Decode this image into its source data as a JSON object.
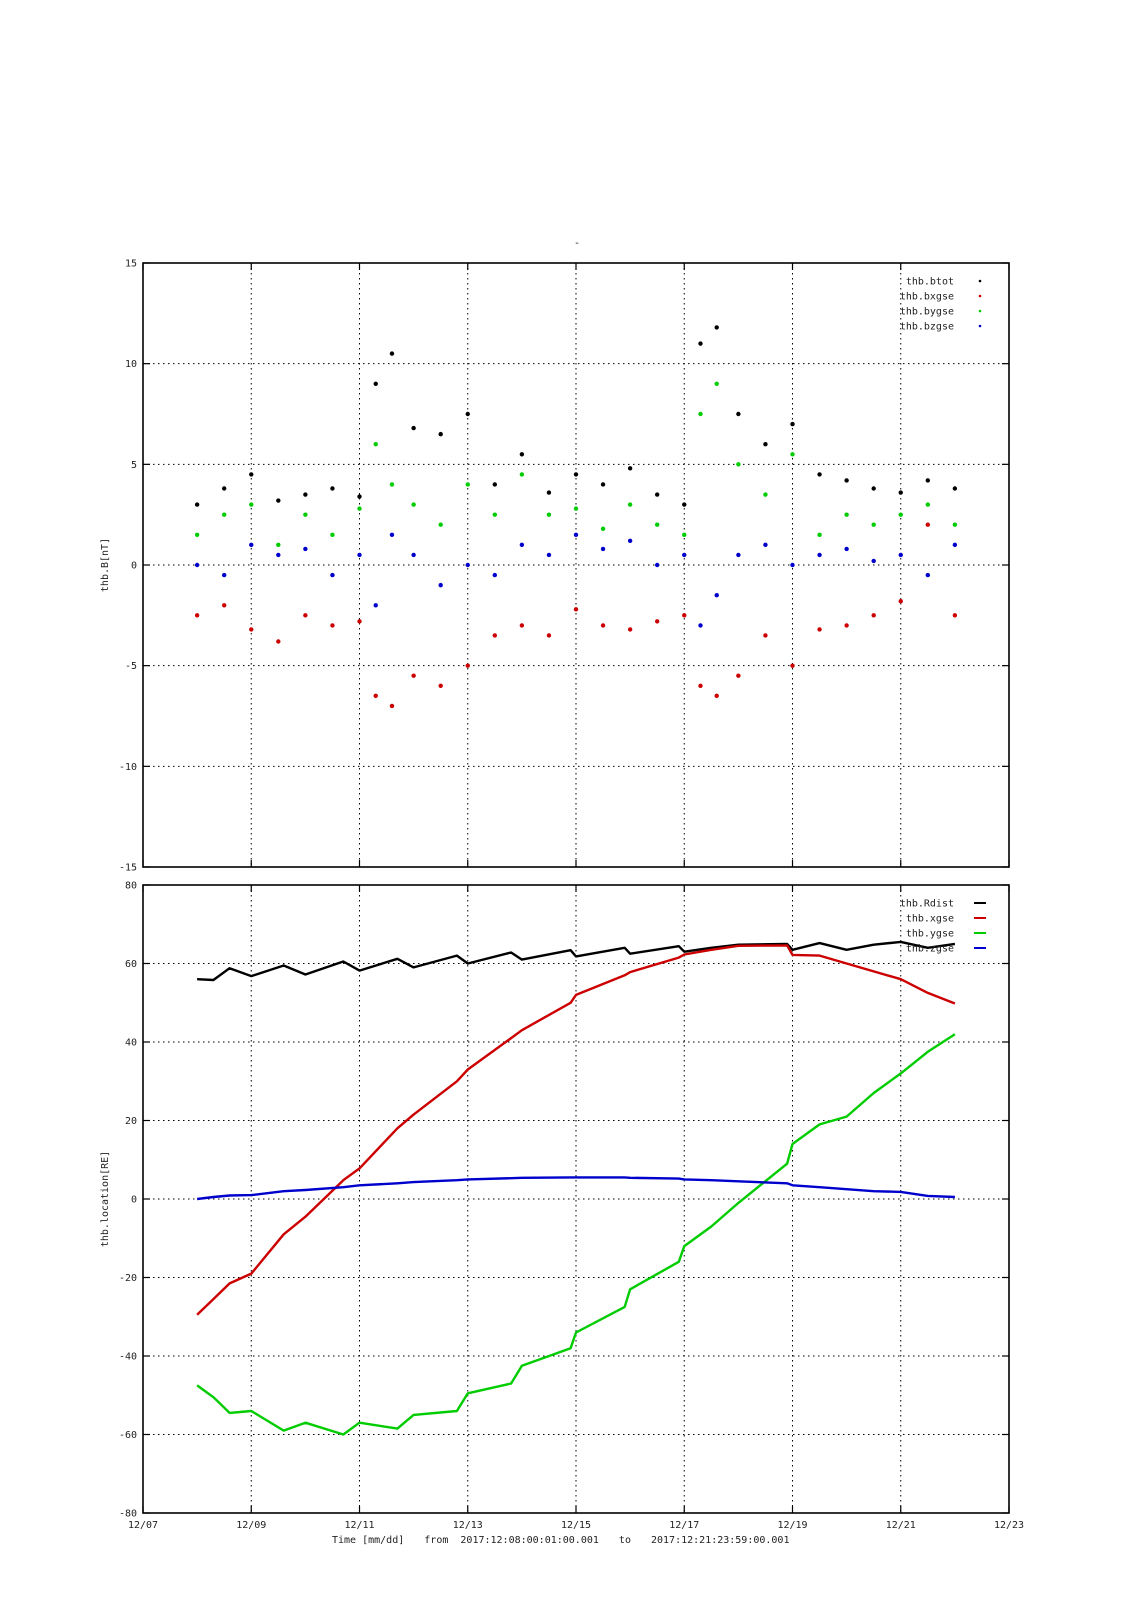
{
  "figure_title": "-",
  "footer": {
    "time_label": "Time [mm/dd]",
    "from_label": "from",
    "start": "2017:12:08:00:01:00.001",
    "to_label": "to",
    "end": "2017:12:21:23:59:00.001"
  },
  "x_tick_labels": [
    "12/07",
    "12/09",
    "12/11",
    "12/13",
    "12/15",
    "12/17",
    "12/19",
    "12/21",
    "12/23"
  ],
  "colors": {
    "black": "#000000",
    "red": "#cc0000",
    "green": "#00cc00",
    "blue": "#0000cc"
  },
  "chart_data": [
    {
      "type": "scatter",
      "title": "",
      "xlabel": "",
      "ylabel": "thb.B[nT]",
      "xlim": [
        "12/07",
        "12/23"
      ],
      "ylim": [
        -15,
        15
      ],
      "yticks": [
        15,
        10,
        5,
        0,
        -5,
        -10,
        -15
      ],
      "grid": true,
      "legend_position": "top-right",
      "series": [
        {
          "name": "thb.btot",
          "color": "#000000",
          "x": [
            "12/08",
            "12/08.5",
            "12/09",
            "12/09.5",
            "12/10",
            "12/10.5",
            "12/11",
            "12/11.3",
            "12/11.6",
            "12/12",
            "12/12.5",
            "12/13",
            "12/13.5",
            "12/14",
            "12/14.5",
            "12/15",
            "12/15.5",
            "12/16",
            "12/16.5",
            "12/17",
            "12/17.3",
            "12/17.6",
            "12/18",
            "12/18.5",
            "12/19",
            "12/19.5",
            "12/20",
            "12/20.5",
            "12/21",
            "12/21.5",
            "12/22"
          ],
          "values": [
            3.0,
            3.8,
            4.5,
            3.2,
            3.5,
            3.8,
            3.4,
            9.0,
            10.5,
            6.8,
            6.5,
            7.5,
            4.0,
            5.5,
            3.6,
            4.5,
            4.0,
            4.8,
            3.5,
            3.0,
            11.0,
            11.8,
            7.5,
            6.0,
            7.0,
            4.5,
            4.2,
            3.8,
            3.6,
            4.2,
            3.8
          ]
        },
        {
          "name": "thb.bxgse",
          "color": "#cc0000",
          "x": [
            "12/08",
            "12/08.5",
            "12/09",
            "12/09.5",
            "12/10",
            "12/10.5",
            "12/11",
            "12/11.3",
            "12/11.6",
            "12/12",
            "12/12.5",
            "12/13",
            "12/13.5",
            "12/14",
            "12/14.5",
            "12/15",
            "12/15.5",
            "12/16",
            "12/16.5",
            "12/17",
            "12/17.3",
            "12/17.6",
            "12/18",
            "12/18.5",
            "12/19",
            "12/19.5",
            "12/20",
            "12/20.5",
            "12/21",
            "12/21.5",
            "12/22"
          ],
          "values": [
            -2.5,
            -2.0,
            -3.2,
            -3.8,
            -2.5,
            -3.0,
            -2.8,
            -6.5,
            -7.0,
            -5.5,
            -6.0,
            -5.0,
            -3.5,
            -3.0,
            -3.5,
            -2.2,
            -3.0,
            -3.2,
            -2.8,
            -2.5,
            -6.0,
            -6.5,
            -5.5,
            -3.5,
            -5.0,
            -3.2,
            -3.0,
            -2.5,
            -1.8,
            2.0,
            -2.5
          ]
        },
        {
          "name": "thb.bygse",
          "color": "#00cc00",
          "x": [
            "12/08",
            "12/08.5",
            "12/09",
            "12/09.5",
            "12/10",
            "12/10.5",
            "12/11",
            "12/11.3",
            "12/11.6",
            "12/12",
            "12/12.5",
            "12/13",
            "12/13.5",
            "12/14",
            "12/14.5",
            "12/15",
            "12/15.5",
            "12/16",
            "12/16.5",
            "12/17",
            "12/17.3",
            "12/17.6",
            "12/18",
            "12/18.5",
            "12/19",
            "12/19.5",
            "12/20",
            "12/20.5",
            "12/21",
            "12/21.5",
            "12/22"
          ],
          "values": [
            1.5,
            2.5,
            3.0,
            1.0,
            2.5,
            1.5,
            2.8,
            6.0,
            4.0,
            3.0,
            2.0,
            4.0,
            2.5,
            4.5,
            2.5,
            2.8,
            1.8,
            3.0,
            2.0,
            1.5,
            7.5,
            9.0,
            5.0,
            3.5,
            5.5,
            1.5,
            2.5,
            2.0,
            2.5,
            3.0,
            2.0
          ]
        },
        {
          "name": "thb.bzgse",
          "color": "#0000cc",
          "x": [
            "12/08",
            "12/08.5",
            "12/09",
            "12/09.5",
            "12/10",
            "12/10.5",
            "12/11",
            "12/11.3",
            "12/11.6",
            "12/12",
            "12/12.5",
            "12/13",
            "12/13.5",
            "12/14",
            "12/14.5",
            "12/15",
            "12/15.5",
            "12/16",
            "12/16.5",
            "12/17",
            "12/17.3",
            "12/17.6",
            "12/18",
            "12/18.5",
            "12/19",
            "12/19.5",
            "12/20",
            "12/20.5",
            "12/21",
            "12/21.5",
            "12/22"
          ],
          "values": [
            0.0,
            -0.5,
            1.0,
            0.5,
            0.8,
            -0.5,
            0.5,
            -2.0,
            1.5,
            0.5,
            -1.0,
            0.0,
            -0.5,
            1.0,
            0.5,
            1.5,
            0.8,
            1.2,
            0.0,
            0.5,
            -3.0,
            -1.5,
            0.5,
            1.0,
            0.0,
            0.5,
            0.8,
            0.2,
            0.5,
            -0.5,
            1.0
          ]
        }
      ]
    },
    {
      "type": "line",
      "title": "",
      "xlabel": "Time [mm/dd]",
      "ylabel": "thb.location[RE]",
      "xlim": [
        "12/07",
        "12/23"
      ],
      "ylim": [
        -80,
        80
      ],
      "yticks": [
        80,
        60,
        40,
        20,
        0,
        -20,
        -40,
        -60,
        -80
      ],
      "grid": true,
      "legend_position": "top-right",
      "series": [
        {
          "name": "thb.Rdist",
          "color": "#000000",
          "x": [
            "12/08",
            "12/08.3",
            "12/08.6",
            "12/09",
            "12/09.6",
            "12/10",
            "12/10.7",
            "12/11",
            "12/11.7",
            "12/12",
            "12/12.8",
            "12/13",
            "12/13.8",
            "12/14",
            "12/14.9",
            "12/15",
            "12/15.9",
            "12/16",
            "12/16.9",
            "12/17",
            "12/17.5",
            "12/18",
            "12/18.9",
            "12/19",
            "12/19.5",
            "12/20",
            "12/20.5",
            "12/21",
            "12/21.5",
            "12/22"
          ],
          "values": [
            56,
            55.8,
            58.8,
            56.8,
            59.5,
            57.2,
            60.5,
            58.2,
            61.2,
            59.0,
            62.0,
            60.0,
            62.8,
            61.0,
            63.4,
            61.8,
            64.0,
            62.5,
            64.4,
            63.0,
            64.0,
            64.8,
            65.0,
            63.5,
            65.2,
            63.5,
            64.8,
            65.5,
            64.0,
            65.0
          ]
        },
        {
          "name": "thb.xgse",
          "color": "#cc0000",
          "x": [
            "12/08",
            "12/08.3",
            "12/08.6",
            "12/09",
            "12/09.6",
            "12/10",
            "12/10.7",
            "12/11",
            "12/11.7",
            "12/12",
            "12/12.8",
            "12/13",
            "12/13.8",
            "12/14",
            "12/14.9",
            "12/15",
            "12/15.9",
            "12/16",
            "12/16.9",
            "12/17",
            "12/17.5",
            "12/18",
            "12/18.9",
            "12/19",
            "12/19.5",
            "12/20",
            "12/20.5",
            "12/21",
            "12/21.5",
            "12/22"
          ],
          "values": [
            -29.5,
            -25.5,
            -21.5,
            -19.0,
            -9.0,
            -4.5,
            4.8,
            7.8,
            18.0,
            21.5,
            30.0,
            33.0,
            41.0,
            43.0,
            50.0,
            52.0,
            57.0,
            57.8,
            61.5,
            62.3,
            63.5,
            64.5,
            64.6,
            62.2,
            62.0,
            60.0,
            58.0,
            56.0,
            52.5,
            49.8
          ]
        },
        {
          "name": "thb.ygse",
          "color": "#00cc00",
          "x": [
            "12/08",
            "12/08.3",
            "12/08.6",
            "12/09",
            "12/09.6",
            "12/10",
            "12/10.7",
            "12/11",
            "12/11.7",
            "12/12",
            "12/12.8",
            "12/13",
            "12/13.8",
            "12/14",
            "12/14.9",
            "12/15",
            "12/15.9",
            "12/16",
            "12/16.9",
            "12/17",
            "12/17.5",
            "12/18",
            "12/18.9",
            "12/19",
            "12/19.5",
            "12/20",
            "12/20.5",
            "12/21",
            "12/21.5",
            "12/22"
          ],
          "values": [
            -47.5,
            -50.5,
            -54.5,
            -54.0,
            -59.0,
            -57.0,
            -60.0,
            -57.0,
            -58.5,
            -55.0,
            -54.0,
            -49.5,
            -47.0,
            -42.5,
            -38.0,
            -34.0,
            -27.5,
            -23.0,
            -16.0,
            -12.0,
            -7.0,
            -1.0,
            9.0,
            14.0,
            19.0,
            21.0,
            27.0,
            32.0,
            37.5,
            42.0
          ]
        },
        {
          "name": "thb.zgse",
          "color": "#0000cc",
          "x": [
            "12/08",
            "12/08.3",
            "12/08.6",
            "12/09",
            "12/09.6",
            "12/10",
            "12/10.7",
            "12/11",
            "12/11.7",
            "12/12",
            "12/12.8",
            "12/13",
            "12/13.8",
            "12/14",
            "12/14.9",
            "12/15",
            "12/15.9",
            "12/16",
            "12/16.9",
            "12/17",
            "12/17.5",
            "12/18",
            "12/18.9",
            "12/19",
            "12/19.5",
            "12/20",
            "12/20.5",
            "12/21",
            "12/21.5",
            "12/22"
          ],
          "values": [
            0,
            0.5,
            0.9,
            1.0,
            2.0,
            2.3,
            3.0,
            3.5,
            4.0,
            4.3,
            4.8,
            5.0,
            5.3,
            5.4,
            5.5,
            5.5,
            5.5,
            5.4,
            5.2,
            5.0,
            4.8,
            4.5,
            4.0,
            3.5,
            3.0,
            2.5,
            2.0,
            1.8,
            0.8,
            0.5
          ]
        }
      ]
    }
  ]
}
